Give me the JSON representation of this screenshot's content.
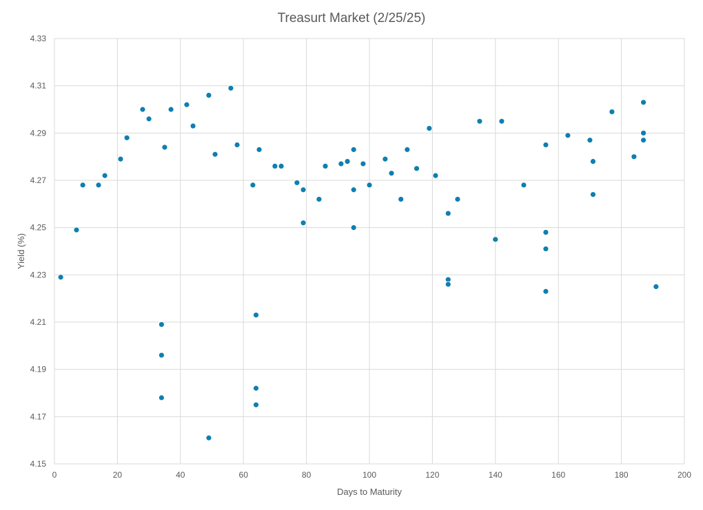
{
  "chart_data": {
    "type": "scatter",
    "title": "Treasurt Market (2/25/25)",
    "xlabel": "Days to Maturity",
    "ylabel": "Yield (%)",
    "xlim": [
      0,
      200
    ],
    "ylim": [
      4.15,
      4.33
    ],
    "x_ticks": [
      "0",
      "20",
      "40",
      "60",
      "80",
      "100",
      "120",
      "140",
      "160",
      "180",
      "200"
    ],
    "y_ticks": [
      "4.15",
      "4.17",
      "4.19",
      "4.21",
      "4.23",
      "4.25",
      "4.27",
      "4.29",
      "4.31",
      "4.33"
    ],
    "grid": true,
    "marker_color": "#0e7fb0",
    "series": [
      {
        "points": [
          [
            2,
            4.229
          ],
          [
            7,
            4.249
          ],
          [
            9,
            4.268
          ],
          [
            14,
            4.268
          ],
          [
            16,
            4.272
          ],
          [
            21,
            4.279
          ],
          [
            23,
            4.288
          ],
          [
            28,
            4.3
          ],
          [
            30,
            4.296
          ],
          [
            34,
            4.209
          ],
          [
            34,
            4.196
          ],
          [
            34,
            4.178
          ],
          [
            35,
            4.284
          ],
          [
            37,
            4.3
          ],
          [
            42,
            4.302
          ],
          [
            44,
            4.293
          ],
          [
            49,
            4.306
          ],
          [
            49,
            4.161
          ],
          [
            51,
            4.281
          ],
          [
            56,
            4.309
          ],
          [
            58,
            4.285
          ],
          [
            63,
            4.268
          ],
          [
            64,
            4.213
          ],
          [
            64,
            4.182
          ],
          [
            64,
            4.175
          ],
          [
            65,
            4.283
          ],
          [
            70,
            4.276
          ],
          [
            72,
            4.276
          ],
          [
            77,
            4.269
          ],
          [
            79,
            4.266
          ],
          [
            79,
            4.252
          ],
          [
            84,
            4.262
          ],
          [
            86,
            4.276
          ],
          [
            91,
            4.277
          ],
          [
            93,
            4.278
          ],
          [
            95,
            4.283
          ],
          [
            95,
            4.266
          ],
          [
            95,
            4.25
          ],
          [
            98,
            4.277
          ],
          [
            100,
            4.268
          ],
          [
            105,
            4.279
          ],
          [
            107,
            4.273
          ],
          [
            110,
            4.262
          ],
          [
            112,
            4.283
          ],
          [
            115,
            4.275
          ],
          [
            119,
            4.292
          ],
          [
            121,
            4.272
          ],
          [
            125,
            4.256
          ],
          [
            125,
            4.228
          ],
          [
            125,
            4.226
          ],
          [
            128,
            4.262
          ],
          [
            135,
            4.295
          ],
          [
            140,
            4.245
          ],
          [
            142,
            4.295
          ],
          [
            149,
            4.268
          ],
          [
            156,
            4.285
          ],
          [
            156,
            4.248
          ],
          [
            156,
            4.241
          ],
          [
            156,
            4.223
          ],
          [
            163,
            4.289
          ],
          [
            170,
            4.287
          ],
          [
            171,
            4.278
          ],
          [
            171,
            4.264
          ],
          [
            177,
            4.299
          ],
          [
            184,
            4.28
          ],
          [
            187,
            4.303
          ],
          [
            187,
            4.29
          ],
          [
            187,
            4.287
          ],
          [
            191,
            4.225
          ]
        ]
      }
    ]
  }
}
